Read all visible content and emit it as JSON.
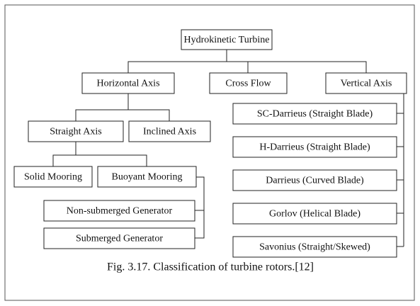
{
  "nodes": [
    {
      "label": "Hydrokinetic Turbine"
    },
    {
      "label": "Horizontal Axis"
    },
    {
      "label": "Cross Flow"
    },
    {
      "label": "Vertical Axis"
    },
    {
      "label": "Straight Axis"
    },
    {
      "label": "Inclined Axis"
    },
    {
      "label": "Solid Mooring"
    },
    {
      "label": "Buoyant Mooring"
    },
    {
      "label": "Non-submerged Generator"
    },
    {
      "label": "Submerged Generator"
    },
    {
      "label": "SC-Darrieus (Straight Blade)"
    },
    {
      "label": "H-Darrieus (Straight Blade)"
    },
    {
      "label": "Darrieus (Curved Blade)"
    },
    {
      "label": "Gorlov (Helical Blade)"
    },
    {
      "label": "Savonius (Straight/Skewed)"
    }
  ],
  "caption": "Fig. 3.17. Classification of turbine rotors.[12]"
}
